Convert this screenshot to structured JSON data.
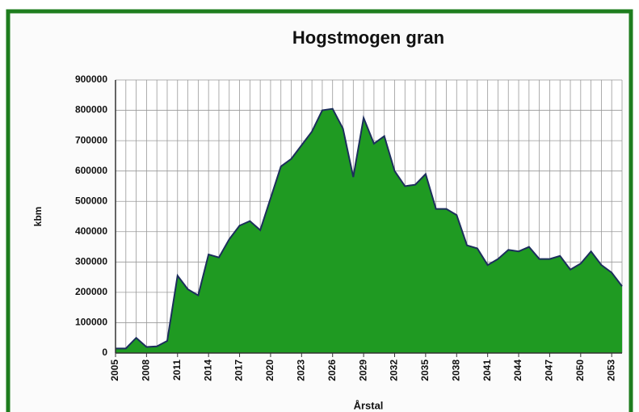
{
  "chart_data": {
    "type": "area",
    "title": "Hogstmogen gran",
    "y_label": "kbm",
    "x_label": "Årstal",
    "color": "#1f9a22",
    "line_color": "#1c2e5c",
    "x": [
      2005,
      2006,
      2007,
      2008,
      2009,
      2010,
      2011,
      2012,
      2013,
      2014,
      2015,
      2016,
      2017,
      2018,
      2019,
      2020,
      2021,
      2022,
      2023,
      2024,
      2025,
      2026,
      2027,
      2028,
      2029,
      2030,
      2031,
      2032,
      2033,
      2034,
      2035,
      2036,
      2037,
      2038,
      2039,
      2040,
      2041,
      2042,
      2043,
      2044,
      2045,
      2046,
      2047,
      2048,
      2049,
      2050,
      2051,
      2052,
      2053,
      2054
    ],
    "values": [
      15000,
      15000,
      50000,
      20000,
      22000,
      40000,
      255000,
      210000,
      190000,
      325000,
      315000,
      375000,
      420000,
      435000,
      405000,
      510000,
      615000,
      640000,
      685000,
      730000,
      800000,
      805000,
      740000,
      580000,
      775000,
      690000,
      715000,
      600000,
      550000,
      555000,
      590000,
      475000,
      475000,
      455000,
      355000,
      345000,
      290000,
      310000,
      340000,
      335000,
      350000,
      310000,
      310000,
      320000,
      275000,
      295000,
      335000,
      290000,
      265000,
      220000
    ],
    "xlim": [
      2005,
      2054
    ],
    "xticks": [
      2005,
      2008,
      2011,
      2014,
      2017,
      2020,
      2023,
      2026,
      2029,
      2032,
      2035,
      2038,
      2041,
      2044,
      2047,
      2050,
      2053
    ],
    "ylim": [
      0,
      900000
    ],
    "yticks": [
      0,
      100000,
      200000,
      300000,
      400000,
      500000,
      600000,
      700000,
      800000,
      900000
    ],
    "grid": true
  }
}
